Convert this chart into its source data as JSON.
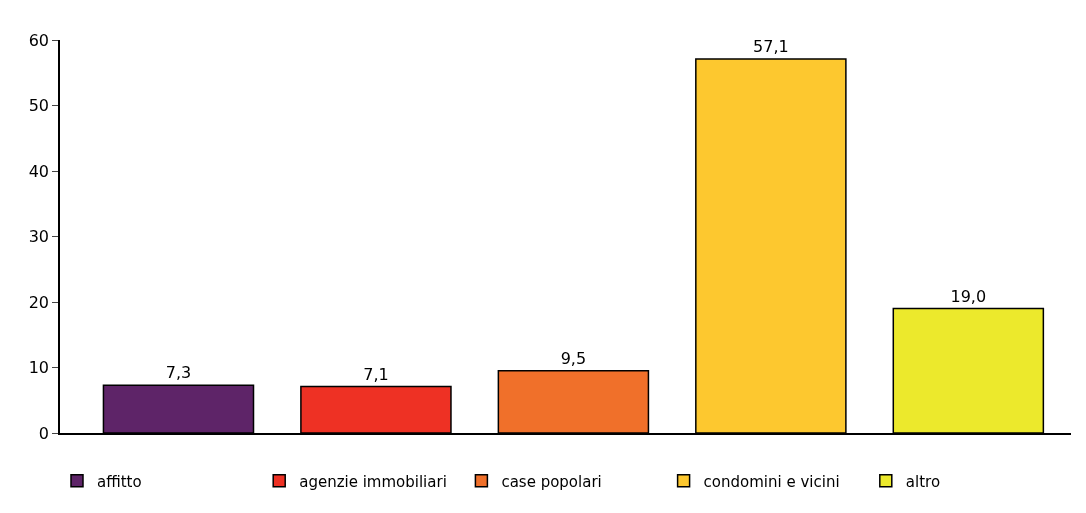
{
  "chart_data": {
    "type": "bar",
    "categories": [
      null,
      null,
      null,
      null,
      null
    ],
    "series": [
      {
        "name": "affitto",
        "color": "#5e2468",
        "values": [
          7.3,
          null,
          null,
          null,
          null
        ],
        "value_labels": [
          "7,3",
          null,
          null,
          null,
          null
        ]
      },
      {
        "name": "agenzie immobiliari",
        "color": "#ee3124",
        "values": [
          null,
          7.1,
          null,
          null,
          null
        ],
        "value_labels": [
          null,
          "7,1",
          null,
          null,
          null
        ]
      },
      {
        "name": "case popolari",
        "color": "#f0702a",
        "values": [
          null,
          null,
          9.5,
          null,
          null
        ],
        "value_labels": [
          null,
          null,
          "9,5",
          null,
          null
        ]
      },
      {
        "name": "condomini e vicini",
        "color": "#fdc82f",
        "values": [
          null,
          null,
          null,
          57.1,
          null
        ],
        "value_labels": [
          null,
          null,
          null,
          "57,1",
          null
        ]
      },
      {
        "name": "altro",
        "color": "#ece92c",
        "values": [
          null,
          null,
          null,
          null,
          19.0
        ],
        "value_labels": [
          null,
          null,
          null,
          null,
          "19,0"
        ]
      }
    ],
    "ylim": [
      0,
      60
    ],
    "yticks": [
      0,
      10,
      20,
      30,
      40,
      50,
      60
    ],
    "legend": "bottom",
    "tick_labels": "y"
  }
}
